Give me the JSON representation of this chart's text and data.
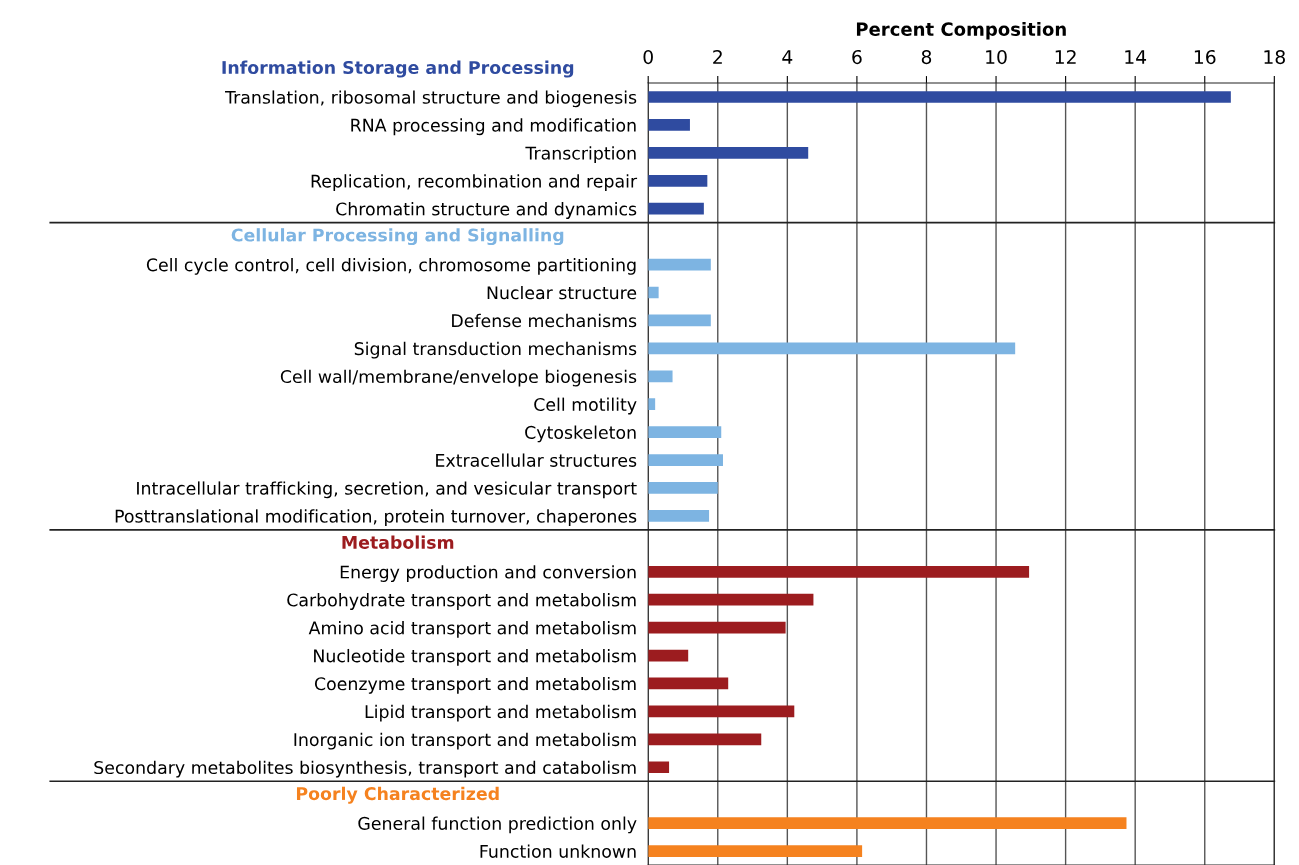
{
  "chart_data": {
    "type": "bar",
    "orientation": "horizontal",
    "xlabel": "Percent Composition",
    "categories": [
      "Translation, ribosomal structure and biogenesis",
      "RNA processing and modification",
      "Transcription",
      "Replication, recombination and repair",
      "Chromatin structure and dynamics",
      null,
      "Cell cycle control, cell division, chromosome partitioning",
      "Nuclear structure",
      "Defense mechanisms",
      "Signal transduction mechanisms",
      "Cell wall/membrane/envelope biogenesis",
      "Cell motility",
      "Cytoskeleton",
      "Extracellular structures",
      "Intracellular trafficking, secretion, and vesicular transport",
      "Posttranslational modification, protein turnover, chaperones",
      null,
      "Energy production and conversion",
      "Carbohydrate transport and metabolism",
      "Amino acid transport and metabolism",
      "Nucleotide transport and metabolism",
      "Coenzyme transport and metabolism",
      "Lipid transport and metabolism",
      "Inorganic ion transport and metabolism",
      "Secondary metabolites biosynthesis, transport and catabolism",
      null,
      "General function prediction only",
      "Function unknown"
    ],
    "series": [
      {
        "name": "Information Storage and Processing",
        "color": "#2f4ba0",
        "values": [
          16.75,
          1.2,
          4.6,
          1.7,
          1.6,
          null,
          null,
          null,
          null,
          null,
          null,
          null,
          null,
          null,
          null,
          null,
          null,
          null,
          null,
          null,
          null,
          null,
          null,
          null,
          null,
          null,
          null,
          null
        ]
      },
      {
        "name": "Cellular Processing and Signalling",
        "color": "#7db4e2",
        "values": [
          null,
          null,
          null,
          null,
          null,
          null,
          1.8,
          0.3,
          1.8,
          10.55,
          0.7,
          0.2,
          2.1,
          2.15,
          2.0,
          1.75,
          null,
          null,
          null,
          null,
          null,
          null,
          null,
          null,
          null,
          null,
          null,
          null
        ]
      },
      {
        "name": "Metabolism",
        "color": "#9c1c1f",
        "values": [
          null,
          null,
          null,
          null,
          null,
          null,
          null,
          null,
          null,
          null,
          null,
          null,
          null,
          null,
          null,
          null,
          null,
          10.95,
          4.75,
          3.95,
          1.15,
          2.3,
          4.2,
          3.25,
          0.6,
          null,
          null,
          null
        ]
      },
      {
        "name": "Poorly Characterized",
        "color": "#f5821f",
        "values": [
          null,
          null,
          null,
          null,
          null,
          null,
          null,
          null,
          null,
          null,
          null,
          null,
          null,
          null,
          null,
          null,
          null,
          null,
          null,
          null,
          null,
          null,
          null,
          null,
          null,
          null,
          13.75,
          6.15
        ]
      }
    ],
    "xlim": [
      0,
      18
    ],
    "xticks": [
      0,
      2,
      4,
      6,
      8,
      10,
      12,
      14,
      16,
      18
    ],
    "grid": "x"
  }
}
